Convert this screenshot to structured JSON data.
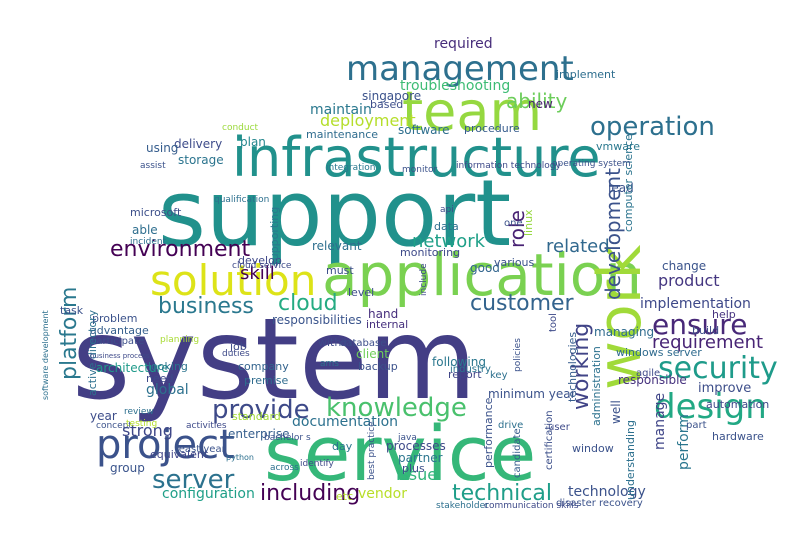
{
  "words": [
    {
      "text": "system",
      "color": "#433e85"
    },
    {
      "text": "support",
      "color": "#21918c"
    },
    {
      "text": "service",
      "color": "#35b779"
    },
    {
      "text": "infrastructure",
      "color": "#21918c"
    },
    {
      "text": "application",
      "color": "#7ad151"
    },
    {
      "text": "team",
      "color": "#95d840"
    },
    {
      "text": "management",
      "color": "#2d708e"
    },
    {
      "text": "work",
      "color": "#a0da39"
    },
    {
      "text": "solution",
      "color": "#dde318"
    },
    {
      "text": "project",
      "color": "#3b528b"
    },
    {
      "text": "environment",
      "color": "#440154"
    },
    {
      "text": "business",
      "color": "#2a788e"
    },
    {
      "text": "knowledge",
      "color": "#4ac16d"
    },
    {
      "text": "security",
      "color": "#1e9b8a"
    },
    {
      "text": "design",
      "color": "#22a884"
    },
    {
      "text": "server",
      "color": "#2c728e"
    },
    {
      "text": "provide",
      "color": "#3e4a89"
    },
    {
      "text": "ensure",
      "color": "#482878"
    },
    {
      "text": "operation",
      "color": "#2d708e"
    },
    {
      "text": "requirement",
      "color": "#482475"
    },
    {
      "text": "customer",
      "color": "#33638d"
    },
    {
      "text": "technical",
      "color": "#1f9e89"
    },
    {
      "text": "including",
      "color": "#440154"
    },
    {
      "text": "platform",
      "color": "#2a788e"
    },
    {
      "text": "development",
      "color": "#3b528b"
    },
    {
      "text": "working",
      "color": "#414487"
    },
    {
      "text": "network",
      "color": "#1fa088"
    },
    {
      "text": "skill",
      "color": "#440154"
    },
    {
      "text": "cloud",
      "color": "#25ab82"
    },
    {
      "text": "ability",
      "color": "#6ccd5a"
    },
    {
      "text": "role",
      "color": "#482173"
    },
    {
      "text": "related",
      "color": "#31688e"
    },
    {
      "text": "product",
      "color": "#453781"
    },
    {
      "text": "implementation",
      "color": "#3e4989"
    },
    {
      "text": "deployment",
      "color": "#b5de2b"
    },
    {
      "text": "maintain",
      "color": "#2a788e"
    },
    {
      "text": "required",
      "color": "#472d7b"
    },
    {
      "text": "troubleshooting",
      "color": "#3dbc74"
    },
    {
      "text": "singapore",
      "color": "#3b528b"
    },
    {
      "text": "maintenance",
      "color": "#2f6c8e"
    },
    {
      "text": "software",
      "color": "#2e6f8e"
    },
    {
      "text": "procedure",
      "color": "#365c8d"
    },
    {
      "text": "configuration",
      "color": "#1f9f88"
    },
    {
      "text": "technology",
      "color": "#3b528b"
    },
    {
      "text": "vendor",
      "color": "#b8de29"
    },
    {
      "text": "documentation",
      "color": "#2c718e"
    },
    {
      "text": "strong",
      "color": "#3f4788"
    },
    {
      "text": "enterprise",
      "color": "#355e8d"
    },
    {
      "text": "architecture",
      "color": "#1f9a8a"
    },
    {
      "text": "responsibilities",
      "color": "#3a548c"
    },
    {
      "text": "global",
      "color": "#2d718e"
    },
    {
      "text": "year",
      "color": "#3d4d8a"
    },
    {
      "text": "issue",
      "color": "#31b57b"
    },
    {
      "text": "manage",
      "color": "#404688"
    },
    {
      "text": "managing",
      "color": "#2f6b8e"
    },
    {
      "text": "perform",
      "color": "#2a768e"
    },
    {
      "text": "storage",
      "color": "#2b748e"
    },
    {
      "text": "delivery",
      "color": "#3e4c8a"
    },
    {
      "text": "microsoft",
      "color": "#3c4f8a"
    },
    {
      "text": "able",
      "color": "#2e6e8e"
    },
    {
      "text": "using",
      "color": "#365d8d"
    },
    {
      "text": "plan",
      "color": "#24878e"
    },
    {
      "text": "relevant",
      "color": "#2e6f8e"
    },
    {
      "text": "change",
      "color": "#3a538b"
    },
    {
      "text": "improve",
      "color": "#3d4e8a"
    },
    {
      "text": "responsible",
      "color": "#46327e"
    },
    {
      "text": "internal",
      "color": "#46307e"
    },
    {
      "text": "good",
      "color": "#32658e"
    },
    {
      "text": "hand",
      "color": "#472f7d"
    },
    {
      "text": "client",
      "color": "#6ece58"
    },
    {
      "text": "backup",
      "color": "#3b518b"
    },
    {
      "text": "following",
      "color": "#2a778e"
    },
    {
      "text": "must",
      "color": "#3c4f8a"
    },
    {
      "text": "level",
      "color": "#3d4d8a"
    },
    {
      "text": "within",
      "color": "#3e4a89"
    },
    {
      "text": "partner",
      "color": "#2b758e"
    },
    {
      "text": "plus",
      "color": "#3c4f8a"
    },
    {
      "text": "performance",
      "color": "#3b528b"
    },
    {
      "text": "equivalent",
      "color": "#404588"
    },
    {
      "text": "group",
      "color": "#3a548c"
    },
    {
      "text": "minimum year",
      "color": "#3b528b"
    },
    {
      "text": "windows server",
      "color": "#2f6b8e"
    },
    {
      "text": "data",
      "color": "#2e6e8e"
    },
    {
      "text": "monitoring",
      "color": "#3e4a89"
    },
    {
      "text": "various",
      "color": "#3a538b"
    },
    {
      "text": "based",
      "color": "#3d4e8a"
    },
    {
      "text": "new",
      "color": "#481f70"
    },
    {
      "text": "implement",
      "color": "#2e6e8e"
    },
    {
      "text": "vmware",
      "color": "#2a788e"
    },
    {
      "text": "lead",
      "color": "#3b528b"
    },
    {
      "text": "computer science",
      "color": "#2b748e"
    },
    {
      "text": "automation",
      "color": "#3e4a89"
    },
    {
      "text": "hardware",
      "color": "#3b528b"
    },
    {
      "text": "help",
      "color": "#46337f"
    },
    {
      "text": "build",
      "color": "#3e4a89"
    },
    {
      "text": "develop",
      "color": "#3f4889"
    },
    {
      "text": "job",
      "color": "#3e4a89"
    },
    {
      "text": "company",
      "color": "#33638d"
    },
    {
      "text": "premise",
      "color": "#2f6c8e"
    },
    {
      "text": "advantage",
      "color": "#355f8d"
    },
    {
      "text": "problem",
      "color": "#3b528b"
    },
    {
      "text": "participate",
      "color": "#3c4f8a"
    },
    {
      "text": "need",
      "color": "#3e4989"
    },
    {
      "text": "looking",
      "color": "#2c738e"
    },
    {
      "text": "task",
      "color": "#3b528b"
    },
    {
      "text": "active directory",
      "color": "#2d708e"
    },
    {
      "text": "standard",
      "color": "#a2da37"
    },
    {
      "text": "report",
      "color": "#404588"
    },
    {
      "text": "industry",
      "color": "#2b748e"
    },
    {
      "text": "database",
      "color": "#3d4e8a"
    },
    {
      "text": "well",
      "color": "#3b528b"
    },
    {
      "text": "understanding",
      "color": "#2d708e"
    },
    {
      "text": "window",
      "color": "#3b528b"
    },
    {
      "text": "candidate",
      "color": "#365c8d"
    },
    {
      "text": "certification",
      "color": "#3c4f8a"
    },
    {
      "text": "administration",
      "color": "#2c718e"
    },
    {
      "text": "technologies",
      "color": "#365c8d"
    },
    {
      "text": "processes",
      "color": "#3e4a89"
    },
    {
      "text": "etc",
      "color": "#b2dd2d"
    },
    {
      "text": "day",
      "color": "#2b748e"
    },
    {
      "text": "linux",
      "color": "#97d83f"
    },
    {
      "text": "disaster recovery",
      "color": "#3b528b"
    },
    {
      "text": "stakeholder",
      "color": "#2d708e"
    },
    {
      "text": "communication skills",
      "color": "#3e4a89"
    },
    {
      "text": "integration",
      "color": "#2a788e"
    },
    {
      "text": "monitor",
      "color": "#3b528b"
    },
    {
      "text": "information technology",
      "color": "#3e4a89"
    },
    {
      "text": "operating system",
      "color": "#3b528b"
    },
    {
      "text": "qualification",
      "color": "#2d708e"
    },
    {
      "text": "cloud service",
      "color": "#3e4a89"
    },
    {
      "text": "supporting",
      "color": "#2a788e"
    },
    {
      "text": "bachelor s",
      "color": "#3b528b"
    },
    {
      "text": "activities",
      "color": "#3e4a89"
    },
    {
      "text": "review",
      "color": "#2d708e"
    },
    {
      "text": "concept",
      "color": "#3b528b"
    },
    {
      "text": "identify",
      "color": "#3e4a89"
    },
    {
      "text": "across",
      "color": "#2d708e"
    },
    {
      "text": "testing",
      "color": "#b5de2b"
    },
    {
      "text": "duties",
      "color": "#3e4a89"
    },
    {
      "text": "planning",
      "color": "#a8db34"
    },
    {
      "text": "assist",
      "color": "#3b528b"
    },
    {
      "text": "incident",
      "color": "#2d708e"
    },
    {
      "text": "conduct",
      "color": "#9bd93c"
    },
    {
      "text": "agile",
      "color": "#3e4a89"
    },
    {
      "text": "python",
      "color": "#2d708e"
    },
    {
      "text": "java",
      "color": "#3b528b"
    },
    {
      "text": "tool",
      "color": "#3e4a89"
    },
    {
      "text": "one",
      "color": "#3b528b"
    },
    {
      "text": "drive",
      "color": "#2d708e"
    },
    {
      "text": "user",
      "color": "#3e4a89"
    },
    {
      "text": "policies",
      "color": "#3b528b"
    },
    {
      "text": "key",
      "color": "#2d708e"
    },
    {
      "text": "include",
      "color": "#3e4a89"
    },
    {
      "text": "part",
      "color": "#3b528b"
    },
    {
      "text": "ams",
      "color": "#2d708e"
    },
    {
      "text": "api",
      "color": "#3e4a89"
    },
    {
      "text": "least year",
      "color": "#3b528b"
    },
    {
      "text": "software development",
      "color": "#2d708e"
    },
    {
      "text": "business process",
      "color": "#3e4a89"
    },
    {
      "text": "best practice",
      "color": "#3b528b"
    }
  ]
}
